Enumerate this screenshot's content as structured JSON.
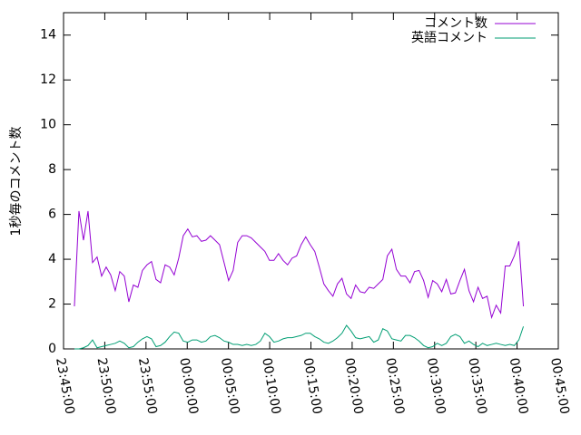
{
  "chart_data": {
    "type": "line",
    "ylabel": "1秒毎のコメント数",
    "x": [
      "23:46:19",
      "23:46:52",
      "23:47:25",
      "23:47:58",
      "23:48:31",
      "23:49:04",
      "23:49:37",
      "23:50:10",
      "23:50:43",
      "23:51:16",
      "23:51:49",
      "23:52:22",
      "23:52:55",
      "23:53:28",
      "23:54:01",
      "23:54:34",
      "23:55:07",
      "23:55:40",
      "23:56:13",
      "23:56:46",
      "23:57:19",
      "23:57:52",
      "23:58:25",
      "23:58:58",
      "23:59:31",
      "00:00:04",
      "00:00:37",
      "00:01:10",
      "00:01:43",
      "00:02:16",
      "00:02:49",
      "00:03:22",
      "00:03:55",
      "00:04:28",
      "00:05:01",
      "00:05:34",
      "00:06:07",
      "00:06:40",
      "00:07:13",
      "00:07:46",
      "00:08:19",
      "00:08:52",
      "00:09:25",
      "00:09:58",
      "00:10:31",
      "00:11:04",
      "00:11:37",
      "00:12:10",
      "00:12:43",
      "00:13:16",
      "00:13:49",
      "00:14:22",
      "00:14:55",
      "00:15:28",
      "00:16:01",
      "00:16:34",
      "00:17:07",
      "00:17:40",
      "00:18:13",
      "00:18:46",
      "00:19:19",
      "00:19:52",
      "00:20:25",
      "00:20:58",
      "00:21:31",
      "00:22:04",
      "00:22:37",
      "00:23:10",
      "00:23:43",
      "00:24:16",
      "00:24:49",
      "00:25:22",
      "00:25:55",
      "00:26:28",
      "00:27:01",
      "00:27:34",
      "00:28:07",
      "00:28:40",
      "00:29:13",
      "00:29:46",
      "00:30:19",
      "00:30:52",
      "00:31:25",
      "00:31:58",
      "00:32:31",
      "00:33:04",
      "00:33:37",
      "00:34:10",
      "00:34:43",
      "00:35:16",
      "00:35:49",
      "00:36:22",
      "00:36:55",
      "00:37:28",
      "00:38:01",
      "00:38:34",
      "00:39:07",
      "00:39:40",
      "00:40:13",
      "00:40:46"
    ],
    "series": [
      {
        "name": "コメント数",
        "color": "#9400d3",
        "values": [
          1.9,
          6.15,
          4.85,
          6.15,
          3.85,
          4.1,
          3.25,
          3.65,
          3.3,
          2.6,
          3.45,
          3.25,
          2.1,
          2.85,
          2.75,
          3.5,
          3.75,
          3.9,
          3.1,
          2.95,
          3.75,
          3.65,
          3.3,
          4.05,
          5.05,
          5.35,
          5.0,
          5.05,
          4.8,
          4.85,
          5.05,
          4.85,
          4.65,
          3.85,
          3.05,
          3.5,
          4.75,
          5.05,
          5.05,
          4.95,
          4.75,
          4.55,
          4.35,
          3.95,
          3.95,
          4.25,
          3.95,
          3.75,
          4.05,
          4.15,
          4.65,
          5.0,
          4.65,
          4.35,
          3.65,
          2.9,
          2.6,
          2.35,
          2.9,
          3.15,
          2.45,
          2.25,
          2.85,
          2.55,
          2.5,
          2.75,
          2.7,
          2.9,
          3.1,
          4.15,
          4.45,
          3.55,
          3.25,
          3.25,
          2.95,
          3.45,
          3.5,
          3.05,
          2.3,
          3.05,
          2.9,
          2.55,
          3.1,
          2.45,
          2.5,
          3.05,
          3.55,
          2.6,
          2.1,
          2.75,
          2.25,
          2.35,
          1.4,
          1.95,
          1.6,
          3.7,
          3.7,
          4.15,
          4.8,
          1.9
        ]
      },
      {
        "name": "英語コメント",
        "color": "#009e73",
        "values": [
          0,
          0,
          0.05,
          0.15,
          0.4,
          0.05,
          0.1,
          0.15,
          0.2,
          0.25,
          0.35,
          0.25,
          0.05,
          0.1,
          0.3,
          0.45,
          0.55,
          0.45,
          0.1,
          0.15,
          0.3,
          0.55,
          0.75,
          0.7,
          0.35,
          0.3,
          0.4,
          0.4,
          0.3,
          0.35,
          0.55,
          0.6,
          0.5,
          0.35,
          0.3,
          0.2,
          0.2,
          0.15,
          0.2,
          0.15,
          0.2,
          0.35,
          0.7,
          0.55,
          0.3,
          0.35,
          0.45,
          0.5,
          0.5,
          0.55,
          0.6,
          0.7,
          0.7,
          0.55,
          0.45,
          0.3,
          0.25,
          0.35,
          0.5,
          0.7,
          1.05,
          0.8,
          0.5,
          0.45,
          0.5,
          0.55,
          0.3,
          0.4,
          0.9,
          0.8,
          0.45,
          0.4,
          0.35,
          0.6,
          0.6,
          0.5,
          0.35,
          0.15,
          0.05,
          0.1,
          0.25,
          0.15,
          0.25,
          0.55,
          0.65,
          0.55,
          0.25,
          0.35,
          0.2,
          0.1,
          0.25,
          0.15,
          0.2,
          0.25,
          0.2,
          0.15,
          0.2,
          0.15,
          0.4,
          1.0
        ]
      }
    ],
    "xlim": [
      "23:45:00",
      "00:45:00"
    ],
    "xticks": [
      "23:45:00",
      "23:50:00",
      "23:55:00",
      "00:00:00",
      "00:05:00",
      "00:10:00",
      "00:15:00",
      "00:20:00",
      "00:25:00",
      "00:30:00",
      "00:35:00",
      "00:40:00",
      "00:45:00"
    ],
    "ylim": [
      0,
      15
    ],
    "yticks": [
      0,
      2,
      4,
      6,
      8,
      10,
      12,
      14
    ],
    "legend": "top right"
  }
}
